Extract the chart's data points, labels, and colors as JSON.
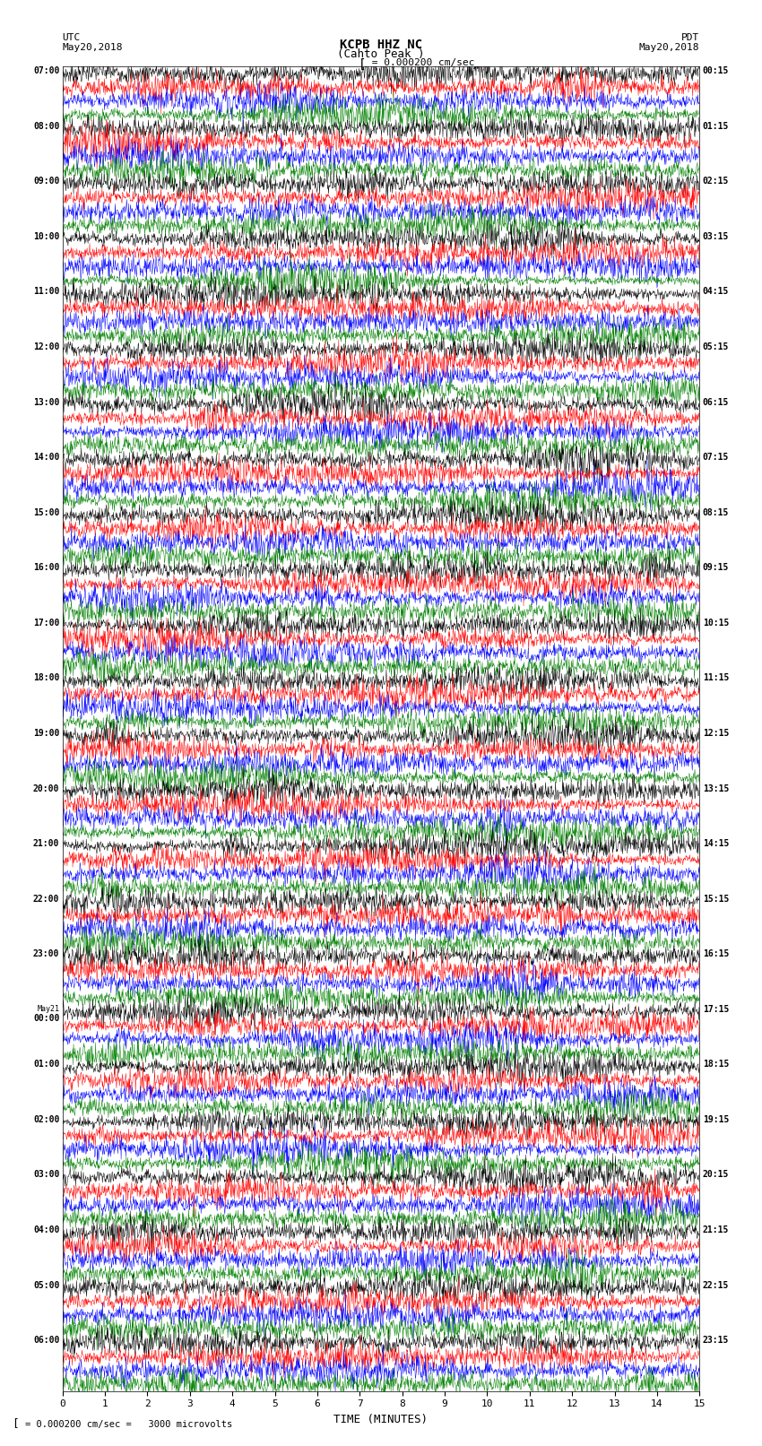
{
  "title_line1": "KCPB HHZ NC",
  "title_line2": "(Cahto Peak )",
  "scale_text": "= 0.000200 cm/sec",
  "left_header": "UTC",
  "left_date": "May20,2018",
  "right_header": "PDT",
  "right_date": "May20,2018",
  "bottom_note": "= 0.000200 cm/sec =   3000 microvolts",
  "xlabel": "TIME (MINUTES)",
  "utc_labels": [
    "07:00",
    "08:00",
    "09:00",
    "10:00",
    "11:00",
    "12:00",
    "13:00",
    "14:00",
    "15:00",
    "16:00",
    "17:00",
    "18:00",
    "19:00",
    "20:00",
    "21:00",
    "22:00",
    "23:00",
    "May21",
    "00:00",
    "01:00",
    "02:00",
    "03:00",
    "04:00",
    "05:00",
    "06:00"
  ],
  "pdt_labels": [
    "00:15",
    "01:15",
    "02:15",
    "03:15",
    "04:15",
    "05:15",
    "06:15",
    "07:15",
    "08:15",
    "09:15",
    "10:15",
    "11:15",
    "12:15",
    "13:15",
    "14:15",
    "15:15",
    "16:15",
    "17:15",
    "18:15",
    "19:15",
    "20:15",
    "21:15",
    "22:15",
    "23:15"
  ],
  "n_rows": 24,
  "traces_per_row": 4,
  "colors": [
    "black",
    "red",
    "blue",
    "green"
  ],
  "x_ticks": [
    0,
    1,
    2,
    3,
    4,
    5,
    6,
    7,
    8,
    9,
    10,
    11,
    12,
    13,
    14,
    15
  ],
  "figsize": [
    8.5,
    16.13
  ],
  "dpi": 100,
  "bg_color": "white",
  "vertical_lines": [
    5,
    10
  ],
  "vertical_line_color": "#aaaaaa"
}
